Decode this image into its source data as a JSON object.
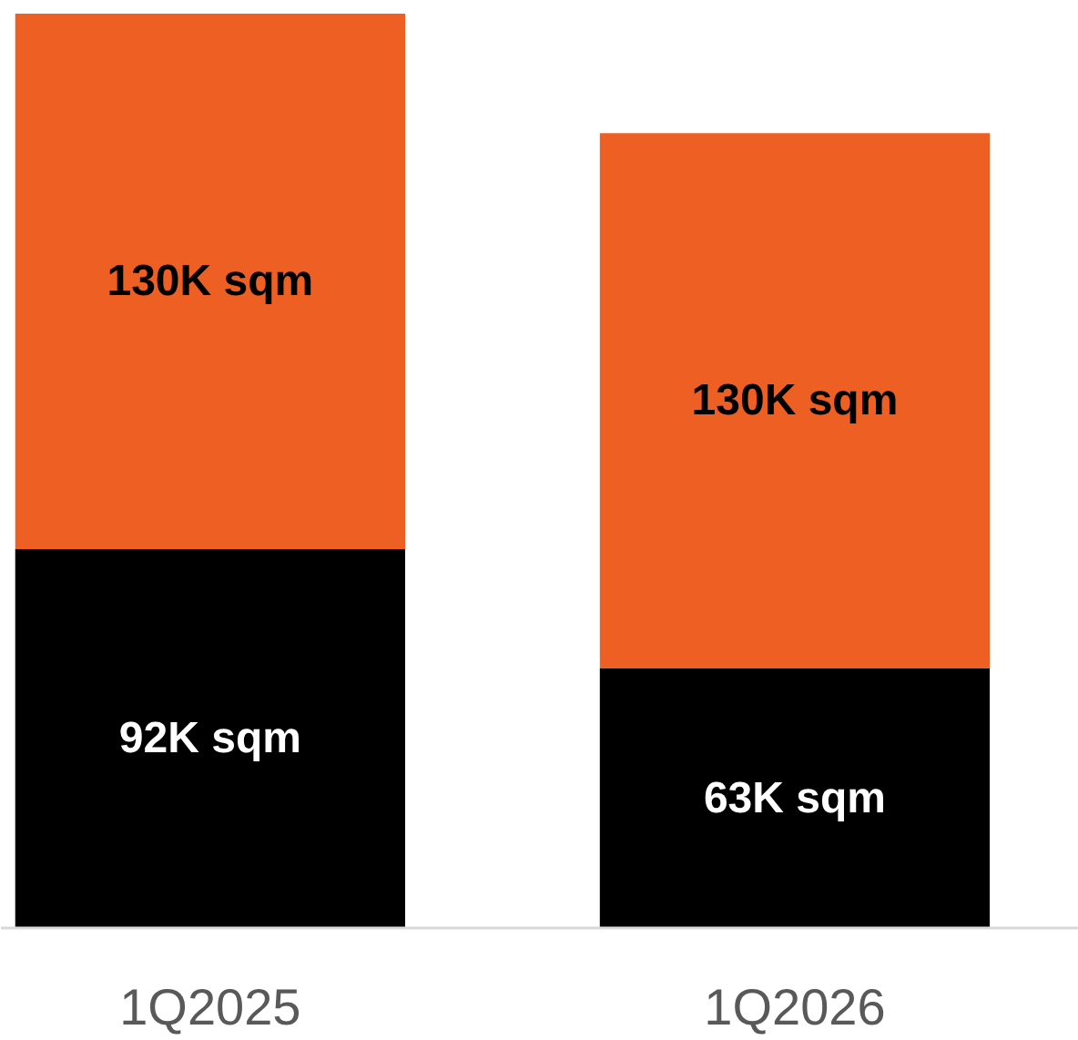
{
  "chart_data": {
    "type": "bar",
    "stacked": true,
    "categories": [
      "1Q2025",
      "1Q2026"
    ],
    "series": [
      {
        "color": "#000000",
        "values": [
          92,
          63
        ],
        "value_labels": [
          "92K sqm",
          "63K sqm"
        ]
      },
      {
        "color": "#ee5f24",
        "values": [
          130,
          130
        ],
        "value_labels": [
          "130K sqm",
          "130K sqm"
        ]
      }
    ]
  }
}
